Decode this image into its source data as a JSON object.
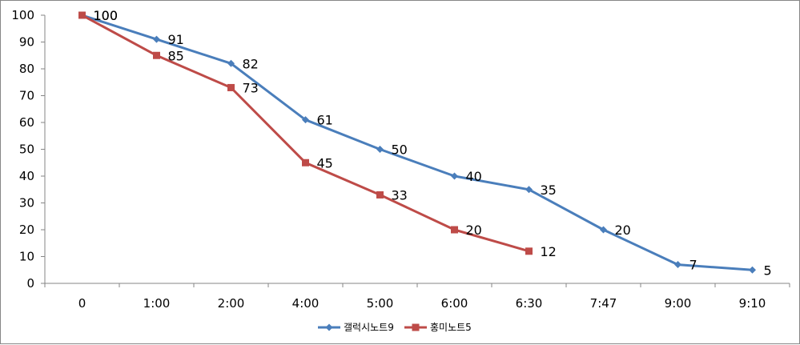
{
  "chart_data": {
    "type": "line",
    "categories": [
      "0",
      "1:00",
      "2:00",
      "4:00",
      "5:00",
      "6:00",
      "6:30",
      "7:47",
      "9:00",
      "9:10"
    ],
    "ylim": [
      0,
      100
    ],
    "yticks": [
      0,
      10,
      20,
      30,
      40,
      50,
      60,
      70,
      80,
      90,
      100
    ],
    "grid": false,
    "legend_position": "bottom",
    "series": [
      {
        "name": "갤럭시노트9",
        "color": "#4A7EBB",
        "marker": "diamond",
        "values": [
          100,
          91,
          82,
          61,
          50,
          40,
          35,
          20,
          7,
          5
        ]
      },
      {
        "name": "홍미노트5",
        "color": "#BE4B48",
        "marker": "square",
        "values": [
          100,
          85,
          73,
          45,
          33,
          20,
          12,
          null,
          null,
          null
        ]
      }
    ]
  }
}
